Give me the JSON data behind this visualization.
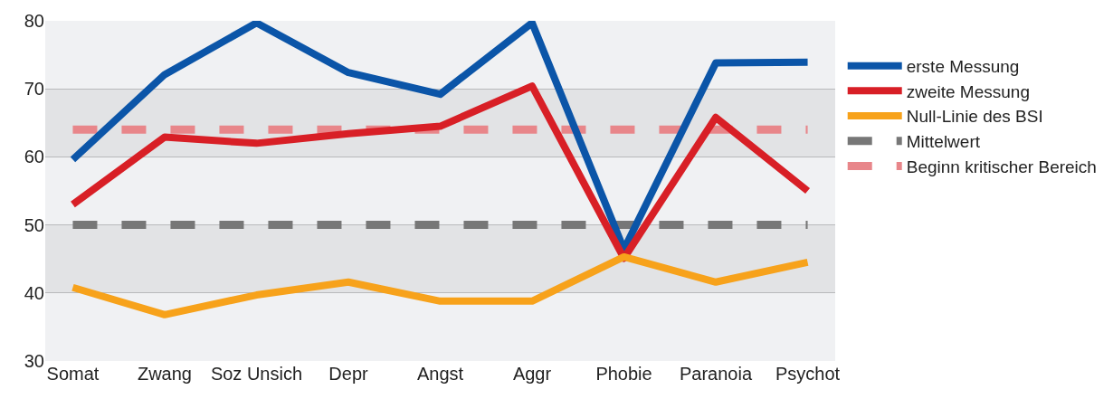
{
  "chart_data": {
    "type": "line",
    "categories": [
      "Somat",
      "Zwang",
      "Soz Unsich",
      "Depr",
      "Angst",
      "Aggr",
      "Phobie",
      "Paranoia",
      "Psychot"
    ],
    "series": [
      {
        "name": "erste Messung",
        "color": "#0b55a8",
        "values": [
          59.6,
          72.1,
          79.7,
          72.4,
          69.2,
          79.7,
          46.4,
          73.8,
          73.9
        ]
      },
      {
        "name": "zweite Messung",
        "color": "#d81f26",
        "values": [
          53,
          62.9,
          62,
          63.4,
          64.5,
          70.4,
          45.1,
          65.8,
          55
        ]
      },
      {
        "name": "Null-Linie des BSI",
        "color": "#f7a21b",
        "values": [
          40.8,
          36.8,
          39.7,
          41.6,
          38.8,
          38.8,
          45.3,
          41.6,
          44.5
        ]
      }
    ],
    "ref_lines": [
      {
        "axis": "y",
        "value": 50,
        "label": "Mittelwert",
        "color": "#777777",
        "line_style": "dashed"
      },
      {
        "axis": "y",
        "value": 64,
        "label": "Beginn kritischer Bereich",
        "color": "#e8868a",
        "line_style": "dashed"
      }
    ],
    "bands": [
      {
        "axis": "y",
        "from": 40,
        "to": 50,
        "color": "#e2e3e5"
      },
      {
        "axis": "y",
        "from": 60,
        "to": 70,
        "color": "#e2e3e5"
      }
    ],
    "ylim": [
      30,
      80
    ],
    "yticks": [
      30,
      40,
      50,
      60,
      70,
      80
    ],
    "grid": "y",
    "legend": "right"
  }
}
